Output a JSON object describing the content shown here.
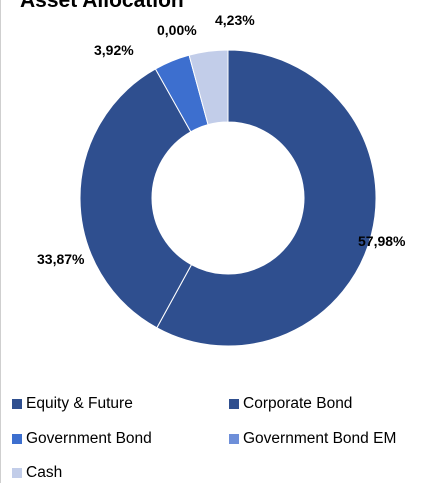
{
  "chart_data": {
    "type": "pie",
    "donut": true,
    "title": "Asset Allocation",
    "categories": [
      "Equity & Future",
      "Corporate Bond",
      "Government Bond",
      "Government Bond EM",
      "Cash"
    ],
    "values": [
      57.98,
      33.87,
      3.92,
      0.0,
      4.23
    ],
    "data_labels": [
      "57,98%",
      "33,87%",
      "3,92%",
      "0,00%",
      "4,23%"
    ],
    "colors": [
      "#2f4f8f",
      "#2f4f8f",
      "#3d6fcf",
      "#6e8fd9",
      "#c2cde9"
    ],
    "legend": {
      "position": "bottom",
      "items": [
        {
          "label": "Equity & Future",
          "color": "#2f4f8f"
        },
        {
          "label": "Corporate Bond",
          "color": "#2f4f8f"
        },
        {
          "label": "Government Bond",
          "color": "#3d6fcf"
        },
        {
          "label": "Government Bond EM",
          "color": "#6e8fd9"
        },
        {
          "label": "Cash",
          "color": "#c2cde9"
        }
      ]
    }
  }
}
